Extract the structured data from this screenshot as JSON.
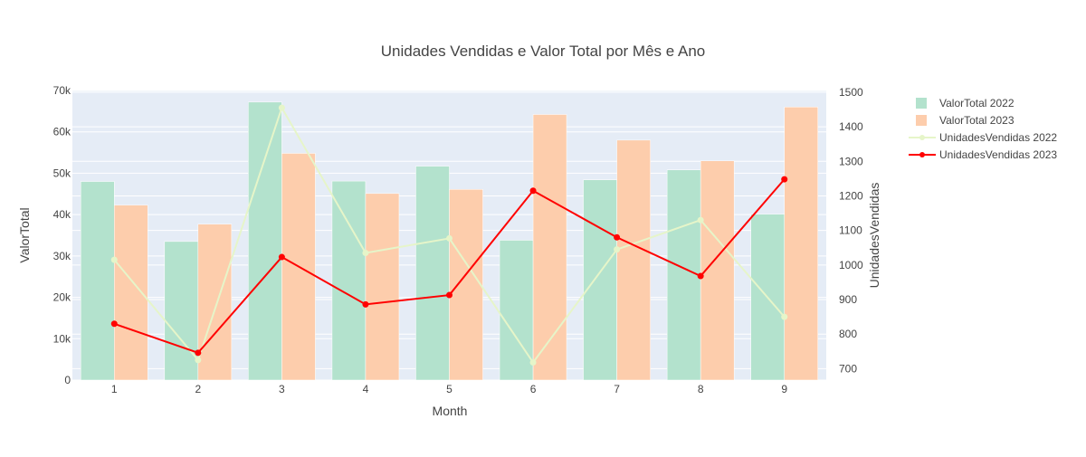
{
  "chart_data": {
    "type": "bar",
    "title": "Unidades Vendidas e Valor Total por Mês e Ano",
    "xlabel": "Month",
    "ylabel_left": "ValorTotal",
    "ylabel_right": "UnidadesVendidas",
    "categories": [
      "1",
      "2",
      "3",
      "4",
      "5",
      "6",
      "7",
      "8",
      "9"
    ],
    "left_ticks": [
      "0",
      "10k",
      "20k",
      "30k",
      "40k",
      "50k",
      "60k",
      "70k"
    ],
    "right_ticks": [
      "700",
      "800",
      "900",
      "1000",
      "1100",
      "1200",
      "1300",
      "1400",
      "1500"
    ],
    "ylim_left": [
      0,
      70000
    ],
    "ylim_right": [
      667,
      1505
    ],
    "grid": true,
    "legend_position": "right",
    "series": [
      {
        "name": "ValorTotal 2022",
        "kind": "bar",
        "axis": "left",
        "color": "#b3e2cd",
        "values": [
          48000,
          33500,
          67200,
          48100,
          51700,
          33800,
          48400,
          50800,
          40100
        ]
      },
      {
        "name": "ValorTotal 2023",
        "kind": "bar",
        "axis": "left",
        "color": "#fdcdac",
        "values": [
          42300,
          37700,
          54800,
          45100,
          46100,
          64200,
          58000,
          53000,
          66000
        ]
      },
      {
        "name": "UnidadesVendidas 2022",
        "kind": "line",
        "axis": "right",
        "color": "#e6f5c9",
        "values": [
          1015,
          725,
          1455,
          1035,
          1077,
          718,
          1045,
          1130,
          850
        ]
      },
      {
        "name": "UnidadesVendidas 2023",
        "kind": "line",
        "axis": "right",
        "color": "#ff0000",
        "values": [
          830,
          746,
          1023,
          886,
          913,
          1215,
          1080,
          968,
          1248
        ]
      }
    ]
  }
}
